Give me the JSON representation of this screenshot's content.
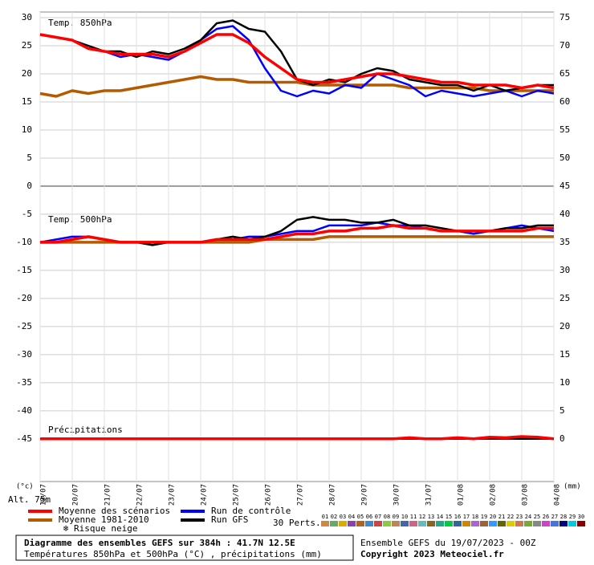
{
  "chart_data": {
    "type": "line",
    "title": "Diagramme des ensembles GEFS sur 384h : 41.7N 12.5E",
    "subtitle": "Températures 850hPa et 500hPa (°C) , précipitations (mm)",
    "run_label": "Ensemble GEFS du 19/07/2023 - 00Z",
    "copyright": "Copyright 2023 Meteociel.fr",
    "panel_labels": [
      "Temp. 850hPa",
      "Temp. 500hPa",
      "Précipitations"
    ],
    "y_unit": "(°c)",
    "y2_unit": "(mm)",
    "altitude": "Alt. 75m",
    "snow_label": "Risque neige",
    "perts_label": "30 Perts.",
    "x": [
      0,
      12,
      24,
      36,
      48,
      60,
      72,
      84,
      96,
      108,
      120,
      132,
      144,
      156,
      168,
      180,
      192,
      204,
      216,
      228,
      240,
      252,
      264,
      276,
      288,
      300,
      312,
      324,
      336,
      348,
      360,
      372,
      384
    ],
    "xlim": [
      0,
      384
    ],
    "xticks": [
      {
        "value": 0,
        "label": "19/07"
      },
      {
        "value": 24,
        "label": "20/07"
      },
      {
        "value": 48,
        "label": "21/07"
      },
      {
        "value": 72,
        "label": "22/07"
      },
      {
        "value": 96,
        "label": "23/07"
      },
      {
        "value": 120,
        "label": "24/07"
      },
      {
        "value": 144,
        "label": "25/07"
      },
      {
        "value": 168,
        "label": "26/07"
      },
      {
        "value": 192,
        "label": "27/07"
      },
      {
        "value": 216,
        "label": "28/07"
      },
      {
        "value": 240,
        "label": "29/07"
      },
      {
        "value": 264,
        "label": "30/07"
      },
      {
        "value": 288,
        "label": "31/07"
      },
      {
        "value": 312,
        "label": "01/08"
      },
      {
        "value": 336,
        "label": "02/08"
      },
      {
        "value": 360,
        "label": "03/08"
      },
      {
        "value": 384,
        "label": "04/08"
      }
    ],
    "ylim": [
      -52.6,
      31
    ],
    "yticks": [
      30,
      25,
      20,
      15,
      10,
      5,
      0,
      -5,
      -10,
      -15,
      -20,
      -25,
      -30,
      -35,
      -40,
      -45
    ],
    "y2lim": [
      -7.6,
      76
    ],
    "y2ticks": [
      75,
      70,
      65,
      60,
      55,
      50,
      45,
      40,
      35,
      30,
      25,
      20,
      15,
      10,
      5,
      0
    ],
    "grid": true,
    "series": [
      {
        "name": "Moyenne des scénarios",
        "color": "#ff0000",
        "values": [
          27,
          26.5,
          26,
          24.5,
          24,
          23.5,
          23.5,
          23.5,
          23,
          24,
          25.5,
          27,
          27,
          25.5,
          23,
          21,
          19,
          18.5,
          18.5,
          19,
          19.5,
          20,
          20,
          19.5,
          19,
          18.5,
          18.5,
          18,
          18,
          18,
          17.5,
          18,
          17.5
        ],
        "values_500": [
          -10,
          -10,
          -9.5,
          -9,
          -9.5,
          -10,
          -10,
          -10,
          -10,
          -10,
          -10,
          -9.5,
          -9.5,
          -9.5,
          -9.5,
          -9,
          -8.5,
          -8.5,
          -8,
          -8,
          -7.5,
          -7.5,
          -7,
          -7.5,
          -7.5,
          -8,
          -8,
          -8,
          -8,
          -8,
          -8,
          -7.5,
          -7.5
        ],
        "values_precip": [
          0,
          0,
          0,
          0,
          0,
          0,
          0,
          0,
          0,
          0,
          0,
          0,
          0,
          0,
          0,
          0,
          0,
          0,
          0,
          0,
          0,
          0,
          0,
          0.2,
          0,
          0,
          0.2,
          0,
          0.3,
          0.2,
          0.4,
          0.3,
          0
        ]
      },
      {
        "name": "Moyenne 1981-2010",
        "color": "#b45a00",
        "values": [
          16.5,
          16,
          17,
          16.5,
          17,
          17,
          17.5,
          18,
          18.5,
          19,
          19.5,
          19,
          19,
          18.5,
          18.5,
          18.5,
          18.5,
          18,
          18,
          18,
          18,
          18,
          18,
          17.5,
          17.5,
          17.5,
          17.5,
          17.5,
          17,
          17,
          17,
          17,
          17
        ],
        "values_500": [
          -10,
          -10,
          -10,
          -10,
          -10,
          -10,
          -10,
          -10,
          -10,
          -10,
          -10,
          -10,
          -10,
          -10,
          -9.5,
          -9.5,
          -9.5,
          -9.5,
          -9,
          -9,
          -9,
          -9,
          -9,
          -9,
          -9,
          -9,
          -9,
          -9,
          -9,
          -9,
          -9,
          -9,
          -9
        ]
      },
      {
        "name": "Run de contrôle",
        "color": "#0000ff",
        "values": [
          27,
          26.5,
          26,
          24.5,
          24,
          23,
          23.5,
          23,
          22.5,
          24,
          26,
          28,
          28.5,
          26,
          21,
          17,
          16,
          17,
          16.5,
          18,
          17.5,
          20,
          19,
          18,
          16,
          17,
          16.5,
          16,
          16.5,
          17,
          16,
          17,
          16.5
        ],
        "values_500": [
          -10,
          -9.5,
          -9,
          -9,
          -9.5,
          -10,
          -10,
          -10,
          -10,
          -10,
          -10,
          -9.5,
          -9.5,
          -9,
          -9,
          -8.5,
          -8,
          -8,
          -7,
          -7,
          -7,
          -6.5,
          -7,
          -7,
          -7.5,
          -8,
          -8,
          -8.5,
          -8,
          -7.5,
          -7,
          -7.5,
          -8
        ],
        "values_precip": [
          0,
          0,
          0,
          0,
          0,
          0,
          0,
          0,
          0,
          0,
          0,
          0,
          0,
          0,
          0,
          0,
          0,
          0,
          0,
          0,
          0,
          0,
          0,
          0,
          0,
          0,
          0,
          0,
          0,
          0,
          0,
          0,
          0
        ]
      },
      {
        "name": "Run GFS",
        "color": "#000000",
        "values": [
          27,
          26.5,
          26,
          25,
          24,
          24,
          23,
          24,
          23.5,
          24.5,
          26,
          29,
          29.5,
          28,
          27.5,
          24,
          19,
          18,
          19,
          18.5,
          20,
          21,
          20.5,
          19,
          18.5,
          18,
          18,
          17,
          18,
          17,
          17.5,
          18,
          18
        ],
        "values_500": [
          -10,
          -10,
          -9.5,
          -9,
          -9.5,
          -10,
          -10,
          -10.5,
          -10,
          -10,
          -10,
          -9.5,
          -9,
          -9.5,
          -9,
          -8,
          -6,
          -5.5,
          -6,
          -6,
          -6.5,
          -6.5,
          -6,
          -7,
          -7,
          -7.5,
          -8,
          -8,
          -8,
          -7.5,
          -7.5,
          -7,
          -7
        ],
        "values_precip": [
          0,
          0,
          0,
          0,
          0,
          0,
          0,
          0,
          0,
          0,
          0,
          0,
          0,
          0,
          0,
          0,
          0,
          0,
          0,
          0,
          0,
          0,
          0,
          0,
          0,
          0,
          0,
          0,
          0,
          0,
          0,
          0,
          0
        ]
      }
    ],
    "perturbations": [
      {
        "name": "01",
        "color": "#cc8844"
      },
      {
        "name": "02",
        "color": "#66aa66"
      },
      {
        "name": "03",
        "color": "#ddaa00"
      },
      {
        "name": "04",
        "color": "#8844aa"
      },
      {
        "name": "05",
        "color": "#aa6622"
      },
      {
        "name": "06",
        "color": "#4488cc"
      },
      {
        "name": "07",
        "color": "#cc4444"
      },
      {
        "name": "08",
        "color": "#88cc44"
      },
      {
        "name": "09",
        "color": "#bb8855"
      },
      {
        "name": "10",
        "color": "#4466aa"
      },
      {
        "name": "11",
        "color": "#cc6688"
      },
      {
        "name": "12",
        "color": "#66bbbb"
      },
      {
        "name": "13",
        "color": "#886622"
      },
      {
        "name": "14",
        "color": "#22aa88"
      },
      {
        "name": "15",
        "color": "#00cc44"
      },
      {
        "name": "16",
        "color": "#336699"
      },
      {
        "name": "17",
        "color": "#cc8800"
      },
      {
        "name": "18",
        "color": "#aa66cc"
      },
      {
        "name": "19",
        "color": "#996633"
      },
      {
        "name": "20",
        "color": "#3399ff"
      },
      {
        "name": "21",
        "color": "#666600"
      },
      {
        "name": "22",
        "color": "#ddcc00"
      },
      {
        "name": "23",
        "color": "#cc7755"
      },
      {
        "name": "24",
        "color": "#77aa33"
      },
      {
        "name": "25",
        "color": "#888888"
      },
      {
        "name": "26",
        "color": "#cc44cc"
      },
      {
        "name": "27",
        "color": "#4477dd"
      },
      {
        "name": "28",
        "color": "#000088"
      },
      {
        "name": "29",
        "color": "#00ccdd"
      },
      {
        "name": "30",
        "color": "#880000"
      }
    ]
  }
}
